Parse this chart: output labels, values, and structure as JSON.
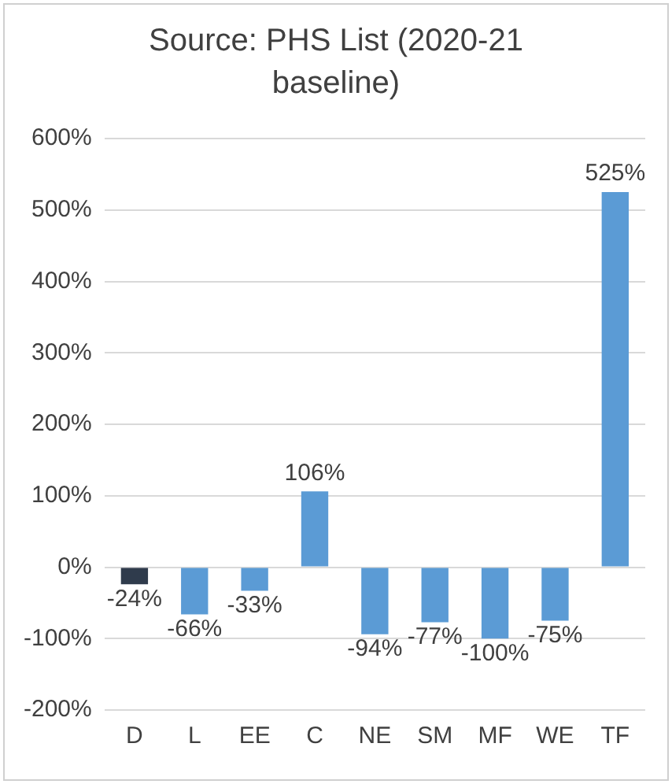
{
  "chart_data": {
    "type": "bar",
    "title": "Source: PHS List (2020-21 baseline)",
    "categories": [
      "D",
      "L",
      "EE",
      "C",
      "NE",
      "SM",
      "MF",
      "WE",
      "TF"
    ],
    "values": [
      -24,
      -66,
      -33,
      106,
      -94,
      -77,
      -100,
      -75,
      525
    ],
    "colors": [
      "#2f3b4c",
      "#5b9bd5",
      "#5b9bd5",
      "#5b9bd5",
      "#5b9bd5",
      "#5b9bd5",
      "#5b9bd5",
      "#5b9bd5",
      "#5b9bd5"
    ],
    "value_labels": [
      "-24%",
      "-66%",
      "-33%",
      "106%",
      "-94%",
      "-77%",
      "-100%",
      "-75%",
      "525%"
    ],
    "ylim": [
      -200,
      600
    ],
    "yticks": [
      {
        "value": -200,
        "label": "-200%"
      },
      {
        "value": -100,
        "label": "-100%"
      },
      {
        "value": 0,
        "label": "0%"
      },
      {
        "value": 100,
        "label": "100%"
      },
      {
        "value": 200,
        "label": "200%"
      },
      {
        "value": 300,
        "label": "300%"
      },
      {
        "value": 400,
        "label": "400%"
      },
      {
        "value": 500,
        "label": "500%"
      },
      {
        "value": 600,
        "label": "600%"
      }
    ],
    "grid": true
  }
}
